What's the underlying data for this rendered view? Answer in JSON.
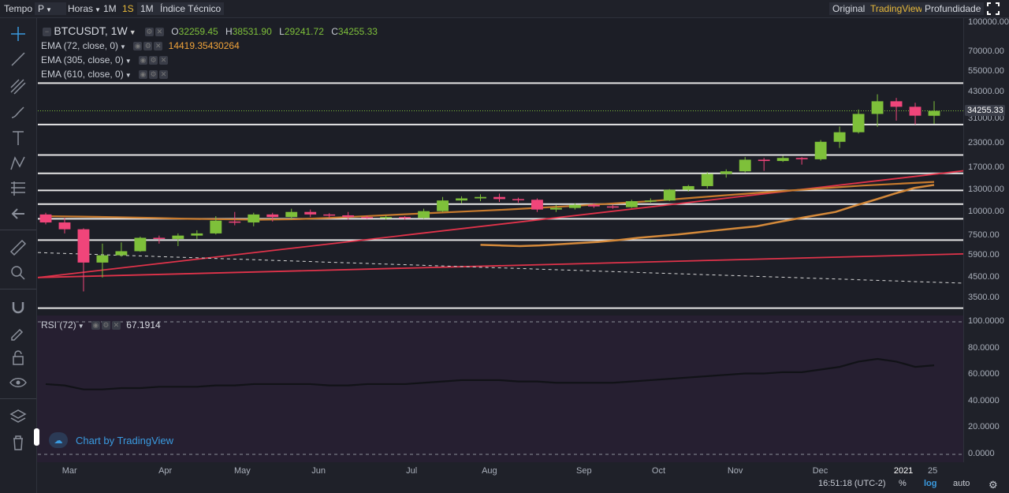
{
  "toolbar": {
    "tempo_label": "Tempo",
    "chart_type": "P",
    "interval_unit": "Horas",
    "btn_1m_a": "1M",
    "btn_1s": "1S",
    "btn_1m_b": "1M",
    "indicators": "Índice Técnico",
    "view_original": "Original",
    "view_tradingview": "TradingView",
    "view_depth": "Profundidade",
    "accent_color": "#e8b93a"
  },
  "legend": {
    "symbol": "BTCUSDT, 1W",
    "o_key": "O",
    "o_val": "32259.45",
    "h_key": "H",
    "h_val": "38531.90",
    "l_key": "L",
    "l_val": "29241.72",
    "c_key": "C",
    "c_val": "34255.33",
    "ema1": "EMA (72, close, 0)",
    "ema1_value": "14419.35430264",
    "ema2": "EMA (305, close, 0)",
    "ema3": "EMA (610, close, 0)",
    "rsi": "RSI (72)",
    "rsi_value": "67.1914"
  },
  "price_axis": {
    "labels": [
      "100000.00",
      "70000.00",
      "55000.00",
      "43000.00",
      "31000.00",
      "23000.00",
      "17000.00",
      "13000.00",
      "10000.00",
      "7500.00",
      "5900.00",
      "4500.00",
      "3500.00"
    ],
    "last_price": "34255.33"
  },
  "rsi_axis": {
    "labels": [
      "100.0000",
      "80.0000",
      "60.0000",
      "40.0000",
      "20.0000",
      "0.0000"
    ]
  },
  "time_axis": {
    "labels": [
      "Mar",
      "Apr",
      "May",
      "Jun",
      "Jul",
      "Aug",
      "Sep",
      "Oct",
      "Nov",
      "Dec",
      "2021",
      "25"
    ]
  },
  "footer": {
    "clock": "16:51:18 (UTC-2)",
    "percent": "%",
    "log": "log",
    "auto": "auto"
  },
  "watermark": "Chart by TradingView",
  "chart_data": {
    "type": "candlestick",
    "interval": "1W",
    "scale": "log",
    "up_color": "#7ec03a",
    "down_color": "#f0457a",
    "candles": [
      {
        "o": 9700,
        "h": 9900,
        "l": 8600,
        "c": 8800
      },
      {
        "o": 8800,
        "h": 9300,
        "l": 7700,
        "c": 8100
      },
      {
        "o": 8100,
        "h": 8200,
        "l": 3800,
        "c": 5400
      },
      {
        "o": 5400,
        "h": 6800,
        "l": 4500,
        "c": 5900
      },
      {
        "o": 5900,
        "h": 6900,
        "l": 5800,
        "c": 6200
      },
      {
        "o": 6200,
        "h": 7400,
        "l": 6150,
        "c": 7300
      },
      {
        "o": 7300,
        "h": 7500,
        "l": 6800,
        "c": 7200
      },
      {
        "o": 7200,
        "h": 7700,
        "l": 6600,
        "c": 7500
      },
      {
        "o": 7500,
        "h": 8000,
        "l": 7200,
        "c": 7700
      },
      {
        "o": 7700,
        "h": 9500,
        "l": 7600,
        "c": 9000
      },
      {
        "o": 8900,
        "h": 10000,
        "l": 8500,
        "c": 8800
      },
      {
        "o": 8800,
        "h": 9900,
        "l": 8400,
        "c": 9700
      },
      {
        "o": 9700,
        "h": 9900,
        "l": 8900,
        "c": 9400
      },
      {
        "o": 9400,
        "h": 10400,
        "l": 9100,
        "c": 10000
      },
      {
        "o": 10000,
        "h": 10300,
        "l": 9400,
        "c": 9700
      },
      {
        "o": 9700,
        "h": 9850,
        "l": 9300,
        "c": 9600
      },
      {
        "o": 9600,
        "h": 10000,
        "l": 9100,
        "c": 9400
      },
      {
        "o": 9400,
        "h": 9600,
        "l": 9200,
        "c": 9300
      },
      {
        "o": 9300,
        "h": 9600,
        "l": 9100,
        "c": 9400
      },
      {
        "o": 9400,
        "h": 9500,
        "l": 9100,
        "c": 9300
      },
      {
        "o": 9300,
        "h": 10400,
        "l": 9200,
        "c": 10100
      },
      {
        "o": 10100,
        "h": 12000,
        "l": 10000,
        "c": 11500
      },
      {
        "o": 11500,
        "h": 12100,
        "l": 11100,
        "c": 11800
      },
      {
        "o": 11800,
        "h": 12400,
        "l": 11400,
        "c": 12000
      },
      {
        "o": 12000,
        "h": 12500,
        "l": 11300,
        "c": 11700
      },
      {
        "o": 11700,
        "h": 11900,
        "l": 11200,
        "c": 11600
      },
      {
        "o": 11600,
        "h": 11800,
        "l": 10000,
        "c": 10300
      },
      {
        "o": 10300,
        "h": 10900,
        "l": 10000,
        "c": 10500
      },
      {
        "o": 10500,
        "h": 11100,
        "l": 10300,
        "c": 10900
      },
      {
        "o": 10900,
        "h": 11100,
        "l": 10500,
        "c": 10700
      },
      {
        "o": 10700,
        "h": 10900,
        "l": 10400,
        "c": 10600
      },
      {
        "o": 10600,
        "h": 11600,
        "l": 10500,
        "c": 11400
      },
      {
        "o": 11400,
        "h": 11800,
        "l": 11200,
        "c": 11500
      },
      {
        "o": 11500,
        "h": 13200,
        "l": 11400,
        "c": 13100
      },
      {
        "o": 13100,
        "h": 13900,
        "l": 12800,
        "c": 13700
      },
      {
        "o": 13700,
        "h": 16300,
        "l": 13300,
        "c": 15900
      },
      {
        "o": 15900,
        "h": 16800,
        "l": 15200,
        "c": 16400
      },
      {
        "o": 16400,
        "h": 19500,
        "l": 16200,
        "c": 18900
      },
      {
        "o": 18900,
        "h": 19300,
        "l": 16500,
        "c": 18600
      },
      {
        "o": 18600,
        "h": 19800,
        "l": 18400,
        "c": 19300
      },
      {
        "o": 19300,
        "h": 19500,
        "l": 17800,
        "c": 19000
      },
      {
        "o": 19000,
        "h": 24000,
        "l": 18700,
        "c": 23500
      },
      {
        "o": 23500,
        "h": 28300,
        "l": 21800,
        "c": 26400
      },
      {
        "o": 26400,
        "h": 34800,
        "l": 26000,
        "c": 33000
      },
      {
        "o": 33000,
        "h": 41900,
        "l": 28200,
        "c": 38500
      },
      {
        "o": 38500,
        "h": 40100,
        "l": 30400,
        "c": 36000
      },
      {
        "o": 36000,
        "h": 37800,
        "l": 29000,
        "c": 32300
      },
      {
        "o": 32260,
        "h": 38530,
        "l": 29240,
        "c": 34255
      }
    ],
    "ema_72": [
      9500,
      9450,
      9380,
      9300,
      9200,
      9150,
      9100,
      9150,
      9300,
      9500,
      9700,
      9900,
      10100,
      10300,
      10550,
      10800,
      11100,
      11400,
      11800,
      12200,
      12600,
      13000,
      13400,
      13800,
      14100,
      14419
    ],
    "ema_305": [
      6700,
      6650,
      6600,
      6650,
      6750,
      6850,
      6950,
      7100,
      7300,
      7450,
      7600,
      7800,
      8000,
      8200,
      8400,
      8800,
      9200,
      9600,
      10000,
      10800,
      11600,
      12500,
      13400,
      13900
    ],
    "horizontal_levels": [
      48000,
      29000,
      20000,
      16000,
      13000,
      11000,
      9200,
      7100,
      3100
    ],
    "trendlines": [
      {
        "from": [
          0,
          4500
        ],
        "to": [
          1,
          16500
        ],
        "color": "#e0334a"
      },
      {
        "from": [
          0,
          4500
        ],
        "to": [
          1,
          6000
        ],
        "color": "#e0334a"
      },
      {
        "from": [
          0,
          6100
        ],
        "to": [
          1,
          4200
        ],
        "color": "#d8d8d8",
        "dashed": true
      }
    ],
    "rsi": [
      53,
      52,
      49,
      49,
      50,
      50,
      51,
      51,
      51,
      52,
      52,
      53,
      53,
      53,
      53,
      52,
      52,
      53,
      53,
      53,
      54,
      55,
      56,
      56,
      56,
      55,
      55,
      54,
      54,
      54,
      54,
      55,
      56,
      57,
      58,
      59,
      60,
      61,
      61,
      62,
      62,
      64,
      66,
      70,
      72,
      70,
      66,
      67.19
    ],
    "rsi_levels": [
      100,
      0
    ]
  }
}
